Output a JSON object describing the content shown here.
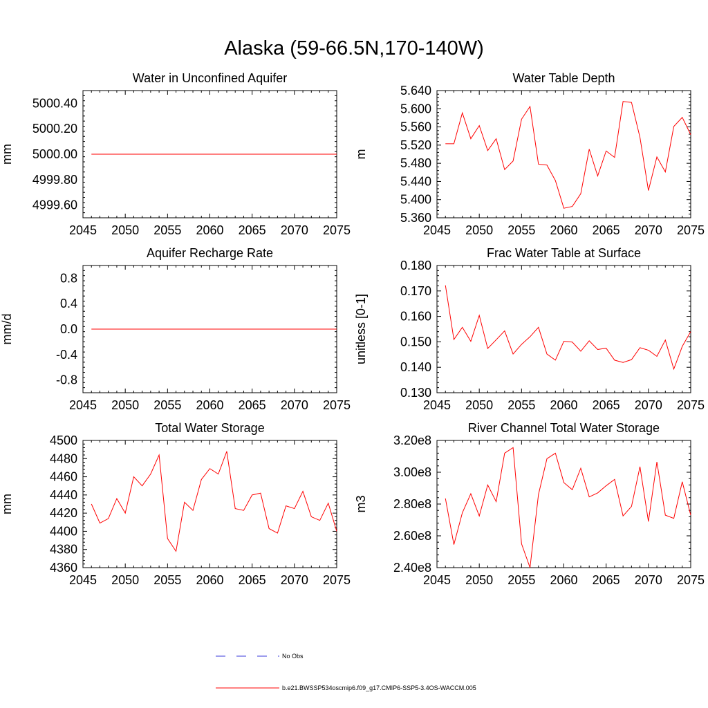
{
  "title": "Alaska (59-66.5N,170-140W)",
  "colors": {
    "model": "#ff0000",
    "obs": "#3b3bdb",
    "axis": "#000000"
  },
  "legend": {
    "obs_label": "No Obs",
    "model_label": "b.e21.BWSSP534oscmip6.f09_g17.CMIP6-SSP5-3.4OS-WACCM.005"
  },
  "chart_data": [
    {
      "type": "line",
      "title": "Water in Unconfined Aquifer",
      "ylabel": "mm",
      "xlim": [
        2045,
        2075
      ],
      "ylim": [
        4999.5,
        5000.5
      ],
      "xticks": [
        2045,
        2050,
        2055,
        2060,
        2065,
        2070,
        2075
      ],
      "yticks": [
        4999.6,
        4999.8,
        5000.0,
        5000.2,
        5000.4
      ],
      "ytick_labels": [
        "4999.60",
        "4999.80",
        "5000.00",
        "5000.20",
        "5000.40"
      ],
      "x": [
        2046,
        2047,
        2048,
        2049,
        2050,
        2051,
        2052,
        2053,
        2054,
        2055,
        2056,
        2057,
        2058,
        2059,
        2060,
        2061,
        2062,
        2063,
        2064,
        2065,
        2066,
        2067,
        2068,
        2069,
        2070,
        2071,
        2072,
        2073,
        2074,
        2075
      ],
      "series": [
        {
          "values": [
            5000,
            5000,
            5000,
            5000,
            5000,
            5000,
            5000,
            5000,
            5000,
            5000,
            5000,
            5000,
            5000,
            5000,
            5000,
            5000,
            5000,
            5000,
            5000,
            5000,
            5000,
            5000,
            5000,
            5000,
            5000,
            5000,
            5000,
            5000,
            5000,
            5000
          ]
        }
      ]
    },
    {
      "type": "line",
      "title": "Water Table Depth",
      "ylabel": "m",
      "xlim": [
        2045,
        2075
      ],
      "ylim": [
        5.36,
        5.64
      ],
      "xticks": [
        2045,
        2050,
        2055,
        2060,
        2065,
        2070,
        2075
      ],
      "yticks": [
        5.36,
        5.4,
        5.44,
        5.48,
        5.52,
        5.56,
        5.6,
        5.64
      ],
      "ytick_labels": [
        "5.360",
        "5.400",
        "5.440",
        "5.480",
        "5.520",
        "5.560",
        "5.600",
        "5.640"
      ],
      "x": [
        2046,
        2047,
        2048,
        2049,
        2050,
        2051,
        2052,
        2053,
        2054,
        2055,
        2056,
        2057,
        2058,
        2059,
        2060,
        2061,
        2062,
        2063,
        2064,
        2065,
        2066,
        2067,
        2068,
        2069,
        2070,
        2071,
        2072,
        2073,
        2074,
        2075
      ],
      "series": [
        {
          "values": [
            5.523,
            5.523,
            5.591,
            5.534,
            5.563,
            5.508,
            5.534,
            5.466,
            5.485,
            5.577,
            5.605,
            5.478,
            5.476,
            5.442,
            5.381,
            5.385,
            5.413,
            5.511,
            5.452,
            5.507,
            5.493,
            5.616,
            5.614,
            5.537,
            5.42,
            5.494,
            5.461,
            5.561,
            5.581,
            5.543
          ]
        }
      ]
    },
    {
      "type": "line",
      "title": "Aquifer Recharge Rate",
      "ylabel": "mm/d",
      "xlim": [
        2045,
        2075
      ],
      "ylim": [
        -1.0,
        1.0
      ],
      "xticks": [
        2045,
        2050,
        2055,
        2060,
        2065,
        2070,
        2075
      ],
      "yticks": [
        -0.8,
        -0.4,
        0.0,
        0.4,
        0.8
      ],
      "ytick_labels": [
        "-0.8",
        "-0.4",
        "0.0",
        "0.4",
        "0.8"
      ],
      "x": [
        2046,
        2047,
        2048,
        2049,
        2050,
        2051,
        2052,
        2053,
        2054,
        2055,
        2056,
        2057,
        2058,
        2059,
        2060,
        2061,
        2062,
        2063,
        2064,
        2065,
        2066,
        2067,
        2068,
        2069,
        2070,
        2071,
        2072,
        2073,
        2074,
        2075
      ],
      "series": [
        {
          "values": [
            0,
            0,
            0,
            0,
            0,
            0,
            0,
            0,
            0,
            0,
            0,
            0,
            0,
            0,
            0,
            0,
            0,
            0,
            0,
            0,
            0,
            0,
            0,
            0,
            0,
            0,
            0,
            0,
            0,
            0
          ]
        }
      ]
    },
    {
      "type": "line",
      "title": "Frac Water Table at Surface",
      "ylabel": "unitless [0-1]",
      "xlim": [
        2045,
        2075
      ],
      "ylim": [
        0.13,
        0.18
      ],
      "xticks": [
        2045,
        2050,
        2055,
        2060,
        2065,
        2070,
        2075
      ],
      "yticks": [
        0.13,
        0.14,
        0.15,
        0.16,
        0.17,
        0.18
      ],
      "ytick_labels": [
        "0.130",
        "0.140",
        "0.150",
        "0.160",
        "0.170",
        "0.180"
      ],
      "x": [
        2046,
        2047,
        2048,
        2049,
        2050,
        2051,
        2052,
        2053,
        2054,
        2055,
        2056,
        2057,
        2058,
        2059,
        2060,
        2061,
        2062,
        2063,
        2064,
        2065,
        2066,
        2067,
        2068,
        2069,
        2070,
        2071,
        2072,
        2073,
        2074,
        2075
      ],
      "series": [
        {
          "values": [
            0.1722,
            0.1509,
            0.1557,
            0.1502,
            0.1604,
            0.1474,
            0.1508,
            0.1543,
            0.1452,
            0.149,
            0.152,
            0.1557,
            0.1452,
            0.1428,
            0.1502,
            0.1499,
            0.1463,
            0.1504,
            0.147,
            0.1475,
            0.1428,
            0.1419,
            0.143,
            0.1477,
            0.1467,
            0.1443,
            0.1507,
            0.1393,
            0.1482,
            0.154
          ]
        }
      ]
    },
    {
      "type": "line",
      "title": "Total Water Storage",
      "ylabel": "mm",
      "xlim": [
        2045,
        2075
      ],
      "ylim": [
        4360,
        4500
      ],
      "xticks": [
        2045,
        2050,
        2055,
        2060,
        2065,
        2070,
        2075
      ],
      "yticks": [
        4360,
        4380,
        4400,
        4420,
        4440,
        4460,
        4480,
        4500
      ],
      "ytick_labels": [
        "4360",
        "4380",
        "4400",
        "4420",
        "4440",
        "4460",
        "4480",
        "4500"
      ],
      "x": [
        2046,
        2047,
        2048,
        2049,
        2050,
        2051,
        2052,
        2053,
        2054,
        2055,
        2056,
        2057,
        2058,
        2059,
        2060,
        2061,
        2062,
        2063,
        2064,
        2065,
        2066,
        2067,
        2068,
        2069,
        2070,
        2071,
        2072,
        2073,
        2074,
        2075
      ],
      "series": [
        {
          "values": [
            4430,
            4409,
            4414,
            4436,
            4420,
            4460,
            4450,
            4463,
            4484,
            4392,
            4378,
            4432,
            4423,
            4457,
            4469,
            4463,
            4488,
            4425,
            4423,
            4440,
            4442,
            4403,
            4398,
            4428,
            4425,
            4444,
            4416,
            4412,
            4431,
            4400
          ]
        }
      ]
    },
    {
      "type": "line",
      "title": "River Channel Total Water Storage",
      "ylabel": "m3",
      "xlim": [
        2045,
        2075
      ],
      "ylim": [
        240000000,
        320000000
      ],
      "xticks": [
        2045,
        2050,
        2055,
        2060,
        2065,
        2070,
        2075
      ],
      "yticks": [
        240000000,
        260000000,
        280000000,
        300000000,
        320000000
      ],
      "ytick_labels": [
        "2.40e8",
        "2.60e8",
        "2.80e8",
        "3.00e8",
        "3.20e8"
      ],
      "x": [
        2046,
        2047,
        2048,
        2049,
        2050,
        2051,
        2052,
        2053,
        2054,
        2055,
        2056,
        2057,
        2058,
        2059,
        2060,
        2061,
        2062,
        2063,
        2064,
        2065,
        2066,
        2067,
        2068,
        2069,
        2070,
        2071,
        2072,
        2073,
        2074,
        2075
      ],
      "series": [
        {
          "values": [
            283500000,
            254500000,
            274500000,
            286500000,
            272500000,
            292000000,
            281500000,
            312000000,
            315500000,
            255000000,
            240000000,
            286000000,
            308500000,
            312000000,
            293500000,
            289000000,
            302500000,
            284500000,
            287000000,
            291500000,
            295500000,
            272500000,
            278500000,
            303500000,
            269000000,
            306500000,
            273000000,
            271000000,
            294000000,
            273000000
          ]
        }
      ]
    }
  ]
}
